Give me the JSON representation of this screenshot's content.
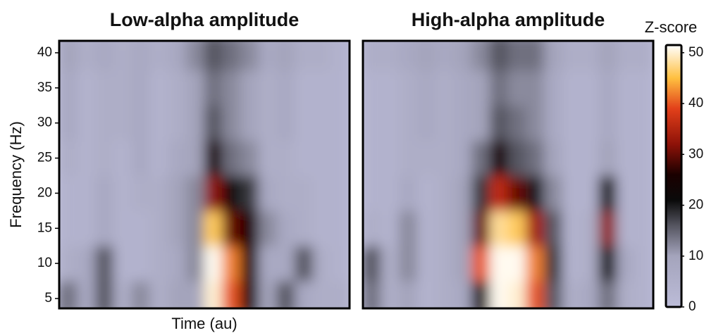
{
  "chart_data": [
    {
      "type": "heatmap",
      "title": "Low-alpha amplitude",
      "ylabel": "Frequency (Hz)",
      "xlabel": "Time (au)",
      "ylim": [
        3.6,
        41.7
      ],
      "yticks": [
        5,
        10,
        15,
        20,
        25,
        30,
        35,
        40
      ],
      "y": [
        5,
        10,
        15,
        20,
        25,
        30,
        35,
        40
      ],
      "z": [
        [
          14,
          8,
          16,
          6,
          12,
          6,
          10,
          10,
          50,
          40,
          24,
          10,
          16,
          8,
          6,
          6
        ],
        [
          6,
          8,
          16,
          4,
          4,
          6,
          8,
          12,
          51,
          42,
          26,
          8,
          8,
          16,
          6,
          4
        ],
        [
          4,
          4,
          8,
          4,
          4,
          6,
          10,
          12,
          46,
          30,
          26,
          12,
          8,
          6,
          4,
          4
        ],
        [
          4,
          4,
          8,
          4,
          6,
          6,
          10,
          12,
          32,
          22,
          18,
          8,
          6,
          6,
          4,
          4
        ],
        [
          6,
          4,
          6,
          4,
          8,
          4,
          8,
          10,
          26,
          14,
          12,
          6,
          6,
          4,
          4,
          4
        ],
        [
          8,
          4,
          6,
          6,
          8,
          4,
          6,
          10,
          16,
          12,
          10,
          6,
          8,
          4,
          4,
          4
        ],
        [
          8,
          4,
          6,
          6,
          8,
          4,
          6,
          10,
          14,
          12,
          10,
          6,
          8,
          4,
          4,
          4
        ],
        [
          10,
          6,
          8,
          6,
          8,
          6,
          8,
          12,
          16,
          14,
          12,
          8,
          10,
          6,
          6,
          4
        ]
      ]
    },
    {
      "type": "heatmap",
      "title": "High-alpha amplitude",
      "ylim": [
        3.6,
        41.7
      ],
      "y": [
        5,
        10,
        15,
        20,
        25,
        30,
        35,
        40
      ],
      "z": [
        [
          14,
          6,
          10,
          4,
          6,
          8,
          24,
          51,
          50,
          40,
          16,
          6,
          8,
          14,
          6,
          4
        ],
        [
          16,
          6,
          12,
          4,
          6,
          10,
          40,
          51,
          51,
          42,
          18,
          4,
          6,
          22,
          8,
          4
        ],
        [
          6,
          4,
          12,
          4,
          6,
          10,
          30,
          48,
          46,
          34,
          16,
          4,
          6,
          32,
          4,
          4
        ],
        [
          4,
          4,
          8,
          4,
          6,
          10,
          18,
          36,
          30,
          20,
          12,
          4,
          4,
          22,
          4,
          4
        ],
        [
          4,
          4,
          6,
          6,
          6,
          8,
          14,
          26,
          16,
          14,
          10,
          4,
          4,
          10,
          4,
          4
        ],
        [
          4,
          4,
          6,
          8,
          6,
          8,
          10,
          16,
          14,
          12,
          8,
          4,
          4,
          8,
          4,
          4
        ],
        [
          4,
          4,
          6,
          8,
          6,
          8,
          10,
          14,
          12,
          12,
          8,
          4,
          4,
          8,
          4,
          4
        ],
        [
          6,
          6,
          8,
          10,
          8,
          10,
          12,
          16,
          14,
          14,
          10,
          6,
          6,
          10,
          6,
          6
        ]
      ],
      "colorbar": {
        "label": "Z-score",
        "lim": [
          0,
          51.5
        ],
        "ticks": [
          0,
          10,
          20,
          30,
          40,
          50
        ],
        "colormap": [
          [
            0,
            "#bcbcd8"
          ],
          [
            10,
            "#a4a4bc"
          ],
          [
            16,
            "#555560"
          ],
          [
            21,
            "#0a0a0a"
          ],
          [
            26,
            "#1a0000"
          ],
          [
            32,
            "#8e1208"
          ],
          [
            39,
            "#e2401a"
          ],
          [
            45,
            "#ffc040"
          ],
          [
            51.5,
            "#ffffff"
          ]
        ]
      }
    }
  ]
}
